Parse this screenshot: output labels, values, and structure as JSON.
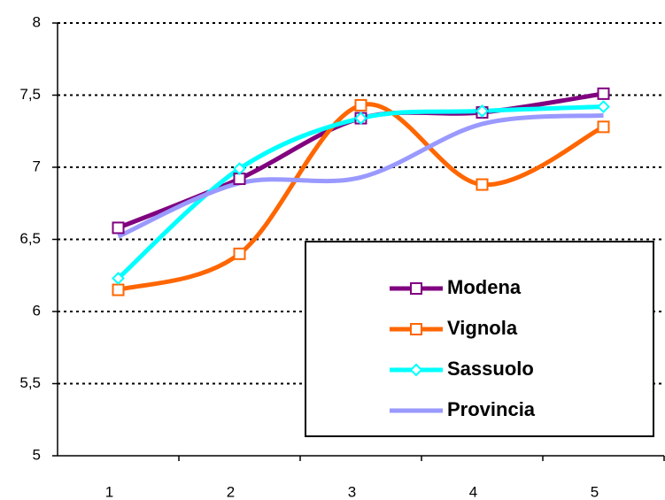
{
  "chart_data": {
    "type": "line",
    "smooth": true,
    "categories": [
      "1",
      "2",
      "3",
      "4",
      "5"
    ],
    "series": [
      {
        "name": "Modena",
        "color": "#800080",
        "marker": "square",
        "values": [
          6.58,
          6.92,
          7.34,
          7.38,
          7.51
        ]
      },
      {
        "name": "Vignola",
        "color": "#ff6600",
        "marker": "square",
        "values": [
          6.15,
          6.4,
          7.43,
          6.88,
          7.28
        ]
      },
      {
        "name": "Sassuolo",
        "color": "#00ffff",
        "marker": "diamond",
        "values": [
          6.23,
          6.99,
          7.34,
          7.39,
          7.42
        ]
      },
      {
        "name": "Provincia",
        "color": "#9999ff",
        "marker": "none",
        "values": [
          6.52,
          6.89,
          6.93,
          7.3,
          7.36
        ]
      }
    ],
    "ylim": [
      5,
      8
    ],
    "yticks": [
      5,
      {
        "value": 5.5,
        "label": "5,5"
      },
      6,
      {
        "value": 6.5,
        "label": "6,5"
      },
      7,
      {
        "value": 7.5,
        "label": "7,5"
      },
      8
    ],
    "grid": true,
    "legend": "lower right"
  }
}
